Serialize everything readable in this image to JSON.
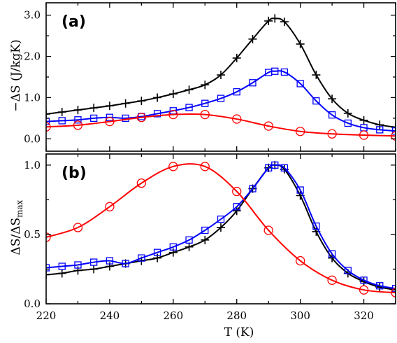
{
  "chart_data": [
    {
      "type": "line",
      "panel_label": "(a)",
      "ylabel": "−ΔS (J/kgK)",
      "xlim": [
        220,
        330
      ],
      "ylim": [
        -0.3,
        3.3
      ],
      "yticks": [
        0.0,
        1.0,
        2.0,
        3.0
      ],
      "ytick_labels": [
        "0.0",
        "1.0",
        "2.0",
        "3.0"
      ],
      "xtick_labels": [],
      "series": [
        {
          "marker": "plus",
          "color": "#000000",
          "x": [
            220,
            225,
            230,
            235,
            240,
            245,
            250,
            255,
            260,
            265,
            270,
            275,
            280,
            285,
            290,
            292,
            295,
            300,
            305,
            310,
            315,
            320,
            325,
            330
          ],
          "y": [
            0.6,
            0.65,
            0.7,
            0.75,
            0.8,
            0.86,
            0.92,
            1.0,
            1.09,
            1.19,
            1.31,
            1.55,
            1.96,
            2.42,
            2.86,
            2.92,
            2.84,
            2.3,
            1.55,
            0.97,
            0.62,
            0.45,
            0.34,
            0.28
          ]
        },
        {
          "marker": "square",
          "color": "#0000ff",
          "x": [
            220,
            225,
            230,
            235,
            240,
            245,
            250,
            255,
            260,
            265,
            270,
            275,
            280,
            285,
            290,
            292,
            295,
            300,
            305,
            310,
            315,
            320,
            325,
            330
          ],
          "y": [
            0.42,
            0.44,
            0.46,
            0.5,
            0.52,
            0.5,
            0.54,
            0.61,
            0.68,
            0.76,
            0.86,
            0.98,
            1.14,
            1.36,
            1.61,
            1.64,
            1.62,
            1.34,
            0.92,
            0.58,
            0.38,
            0.27,
            0.22,
            0.19
          ]
        },
        {
          "marker": "circle",
          "color": "#ff0000",
          "x": [
            220,
            230,
            240,
            250,
            260,
            270,
            280,
            290,
            300,
            310,
            320,
            330
          ],
          "y": [
            0.29,
            0.33,
            0.42,
            0.52,
            0.59,
            0.59,
            0.48,
            0.31,
            0.18,
            0.12,
            0.09,
            0.07
          ]
        }
      ]
    },
    {
      "type": "line",
      "panel_label": "(b)",
      "ylabel": "ΔS/ΔS",
      "ylabel_sub": "max",
      "xlabel": "T (K)",
      "xlim": [
        220,
        330
      ],
      "ylim": [
        0.0,
        1.08
      ],
      "yticks": [
        0.0,
        0.5,
        1.0
      ],
      "ytick_labels": [
        "0.0",
        "0.5",
        "1.0"
      ],
      "xticks": [
        220,
        240,
        260,
        280,
        300,
        320
      ],
      "xtick_labels": [
        "220",
        "240",
        "260",
        "280",
        "300",
        "320"
      ],
      "series": [
        {
          "marker": "plus",
          "color": "#000000",
          "x": [
            220,
            225,
            230,
            235,
            240,
            245,
            250,
            255,
            260,
            265,
            270,
            275,
            280,
            285,
            290,
            292,
            295,
            300,
            305,
            310,
            315,
            320,
            325,
            330
          ],
          "y": [
            0.21,
            0.22,
            0.24,
            0.25,
            0.27,
            0.29,
            0.31,
            0.33,
            0.37,
            0.41,
            0.46,
            0.55,
            0.67,
            0.83,
            0.98,
            1.0,
            0.97,
            0.78,
            0.52,
            0.33,
            0.22,
            0.16,
            0.12,
            0.1
          ]
        },
        {
          "marker": "square",
          "color": "#0000ff",
          "x": [
            220,
            225,
            230,
            235,
            240,
            245,
            250,
            255,
            260,
            265,
            270,
            275,
            280,
            285,
            290,
            292,
            295,
            300,
            305,
            310,
            315,
            320,
            325,
            330
          ],
          "y": [
            0.26,
            0.27,
            0.28,
            0.3,
            0.31,
            0.29,
            0.33,
            0.37,
            0.41,
            0.46,
            0.53,
            0.61,
            0.7,
            0.83,
            0.98,
            1.0,
            0.98,
            0.82,
            0.56,
            0.36,
            0.24,
            0.17,
            0.13,
            0.11
          ]
        },
        {
          "marker": "circle",
          "color": "#ff0000",
          "x": [
            220,
            230,
            240,
            250,
            260,
            270,
            280,
            290,
            300,
            310,
            320,
            330
          ],
          "y": [
            0.48,
            0.55,
            0.7,
            0.87,
            0.99,
            0.99,
            0.81,
            0.53,
            0.31,
            0.17,
            0.1,
            0.08
          ]
        }
      ]
    }
  ]
}
